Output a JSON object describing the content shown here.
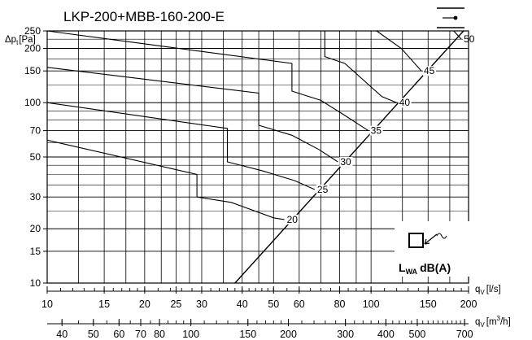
{
  "chart_data": {
    "type": "line",
    "title": "LKP-200+MBB-160-200-E",
    "ylabel": {
      "main": "Δp",
      "sub": "t",
      "unit": "[Pa]"
    },
    "xlabel_primary": {
      "main": "q",
      "sub": "V",
      "unit": "[l/s]"
    },
    "xlabel_secondary": {
      "main": "q",
      "sub": "V",
      "unit_pre": "[m",
      "unit_sup": "3",
      "unit_post": "/h]"
    },
    "x_scale": "log",
    "y_scale": "log",
    "xlim": [
      10,
      200
    ],
    "ylim": [
      10,
      250
    ],
    "grid": true,
    "y_ticks": [
      10,
      15,
      20,
      30,
      50,
      70,
      100,
      150,
      200,
      250
    ],
    "x_ticks_ls": [
      10,
      15,
      20,
      25,
      30,
      40,
      50,
      60,
      80,
      100,
      150,
      200
    ],
    "x_ticks_m3h": [
      40,
      50,
      60,
      70,
      80,
      100,
      150,
      200,
      300,
      400,
      500,
      700
    ],
    "legend_box": {
      "label_main": "L",
      "label_sub": "WA",
      "label_unit": "dB(A)"
    },
    "series": [
      {
        "name": "20",
        "points": [
          [
            10,
            62
          ],
          [
            29,
            40
          ],
          [
            29,
            30
          ],
          [
            37,
            28
          ],
          [
            50,
            23
          ],
          [
            54,
            22.5
          ]
        ]
      },
      {
        "name": "25",
        "points": [
          [
            10,
            100
          ],
          [
            36,
            72
          ],
          [
            36,
            47
          ],
          [
            46,
            42
          ],
          [
            58,
            37
          ],
          [
            67,
            33
          ]
        ]
      },
      {
        "name": "30",
        "points": [
          [
            10,
            157
          ],
          [
            45,
            113
          ],
          [
            45,
            75
          ],
          [
            57,
            66
          ],
          [
            69,
            55
          ],
          [
            79,
            47
          ]
        ]
      },
      {
        "name": "35",
        "points": [
          [
            10,
            250
          ],
          [
            57,
            165
          ],
          [
            57,
            116
          ],
          [
            70,
            103
          ],
          [
            83,
            85
          ],
          [
            98,
            70
          ]
        ]
      },
      {
        "name": "40",
        "points": [
          [
            72,
            250
          ],
          [
            72,
            180
          ],
          [
            83,
            165
          ],
          [
            108,
            108
          ],
          [
            120,
            100
          ]
        ]
      },
      {
        "name": "45",
        "points": [
          [
            104,
            250
          ],
          [
            124,
            200
          ],
          [
            143,
            150
          ]
        ]
      },
      {
        "name": "50",
        "points": [
          [
            180,
            250
          ],
          [
            190,
            225
          ]
        ]
      }
    ],
    "diagonal_line": {
      "points": [
        [
          38,
          10
        ],
        [
          193,
          250
        ]
      ]
    }
  }
}
